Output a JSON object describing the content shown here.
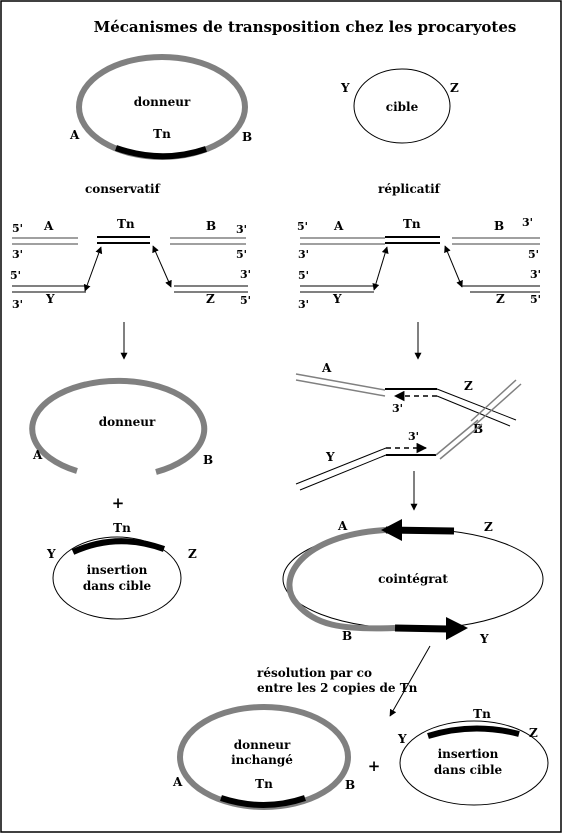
{
  "title": "Mécanismes de transposition chez les procaryotes",
  "top": {
    "donor": "donneur",
    "tn": "Tn",
    "a": "A",
    "b": "B",
    "target": "cible",
    "y": "Y",
    "z": "Z"
  },
  "conservative": {
    "heading": "conservatif",
    "p5a": "5'",
    "p3a": "3'",
    "a": "A",
    "tn": "Tn",
    "b": "B",
    "p3b": "3'",
    "p5b": "5'",
    "p5c": "5'",
    "p3c": "3'",
    "y": "Y",
    "z": "Z",
    "p3d": "3'",
    "p5d": "5'",
    "donor": "donneur",
    "a2": "A",
    "b2": "B",
    "plus": "+",
    "tn2": "Tn",
    "y2": "Y",
    "z2": "Z",
    "insertion1": "insertion",
    "insertion2": "dans cible"
  },
  "replicative": {
    "heading": "réplicatif",
    "p5a": "5'",
    "p3a": "3'",
    "a": "A",
    "tn": "Tn",
    "b": "B",
    "p3b": "3'",
    "p5b": "5'",
    "p5c": "5'",
    "p3c": "3'",
    "y": "Y",
    "z": "Z",
    "p3d": "3'",
    "p5d": "5'",
    "mid_a": "A",
    "mid_z": "Z",
    "mid_3a": "3'",
    "mid_3b": "3'",
    "mid_b": "B",
    "mid_y": "Y",
    "coint_a": "A",
    "coint_z": "Z",
    "coint_b": "B",
    "coint_y": "Y",
    "cointegrate": "cointégrat",
    "resolution1": "résolution par co",
    "resolution2": "entre les 2 copies de Tn",
    "final_donor1": "donneur",
    "final_donor2": "inchangé",
    "final_tn": "Tn",
    "final_a": "A",
    "final_b": "B",
    "plus": "+",
    "final_tn2": "Tn",
    "final_y": "Y",
    "final_z": "Z",
    "final_ins1": "insertion",
    "final_ins2": "dans cible"
  }
}
